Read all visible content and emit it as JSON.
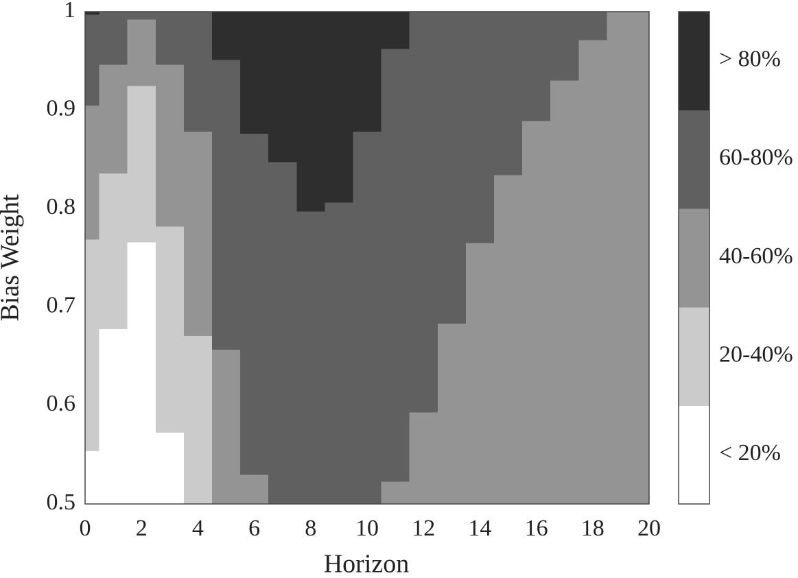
{
  "chart_data": {
    "type": "threshold-heatmap",
    "xlabel": "Horizon",
    "ylabel": "Bias Weight",
    "xlim": [
      0,
      20
    ],
    "ylim": [
      0.5,
      1
    ],
    "xticks": [
      0,
      2,
      4,
      6,
      8,
      10,
      12,
      14,
      16,
      18,
      20
    ],
    "yticks": [
      0.5,
      0.6,
      0.7,
      0.8,
      0.9,
      1
    ],
    "levels": [
      {
        "name": "< 20%",
        "color": "#ffffff"
      },
      {
        "name": "20-40%",
        "color": "#cbcbcb"
      },
      {
        "name": "40-60%",
        "color": "#949494"
      },
      {
        "name": "60-80%",
        "color": "#606060"
      },
      {
        "name": "> 80%",
        "color": "#2e2e2e"
      }
    ],
    "x": [
      0,
      1,
      2,
      3,
      4,
      5,
      6,
      7,
      8,
      9,
      10,
      11,
      12,
      13,
      14,
      15,
      16,
      17,
      18,
      19,
      20
    ],
    "thresholds": [
      [
        0.554,
        0.769,
        0.905,
        0.997
      ],
      [
        0.678,
        0.836,
        0.946,
        1
      ],
      [
        0.766,
        0.925,
        0.992,
        1
      ],
      [
        0.573,
        0.782,
        0.946,
        1
      ],
      [
        0.5,
        0.671,
        0.878,
        1
      ],
      [
        0.5,
        0.5,
        0.657,
        0.951
      ],
      [
        0.5,
        0.5,
        0.53,
        0.876
      ],
      [
        0.5,
        0.5,
        0.5,
        0.847
      ],
      [
        0.5,
        0.5,
        0.5,
        0.797
      ],
      [
        0.5,
        0.5,
        0.5,
        0.806
      ],
      [
        0.5,
        0.5,
        0.5,
        0.878
      ],
      [
        0.5,
        0.5,
        0.523,
        0.962
      ],
      [
        0.5,
        0.5,
        0.593,
        1
      ],
      [
        0.5,
        0.5,
        0.683,
        1
      ],
      [
        0.5,
        0.5,
        0.765,
        1
      ],
      [
        0.5,
        0.5,
        0.834,
        1
      ],
      [
        0.5,
        0.5,
        0.889,
        1
      ],
      [
        0.5,
        0.5,
        0.93,
        1
      ],
      [
        0.5,
        0.5,
        0.971,
        1
      ],
      [
        0.5,
        0.5,
        1,
        1
      ],
      [
        0.5,
        0.5,
        1,
        1
      ]
    ]
  }
}
